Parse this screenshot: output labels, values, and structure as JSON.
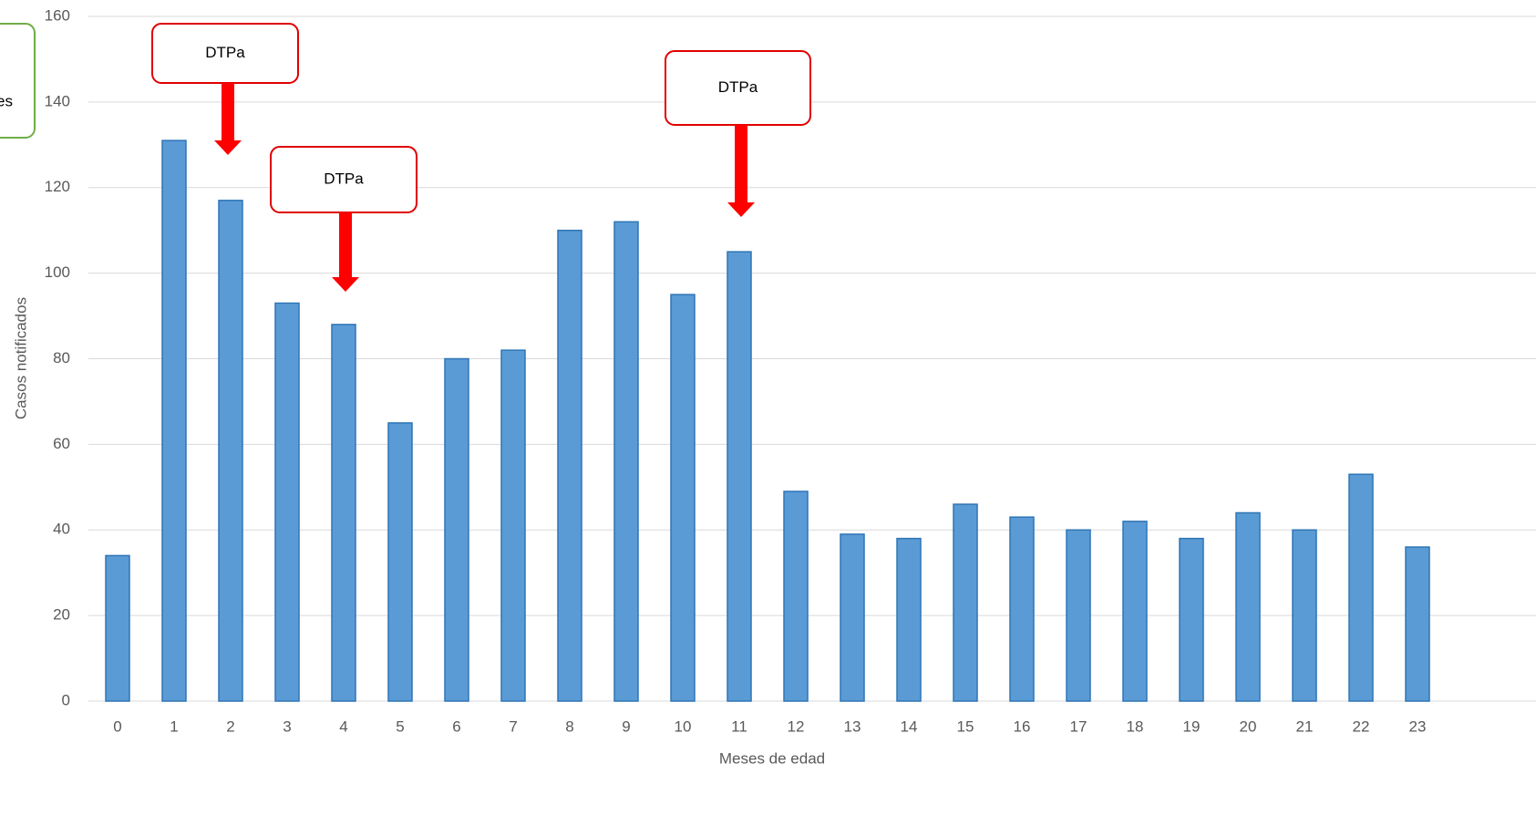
{
  "chart_data": {
    "type": "bar",
    "x_label": "Meses de edad",
    "y_label": "Casos notificados",
    "categories": [
      "0",
      "1",
      "2",
      "3",
      "4",
      "5",
      "6",
      "7",
      "8",
      "9",
      "10",
      "11",
      "12",
      "13",
      "14",
      "15",
      "16",
      "17",
      "18",
      "19",
      "20",
      "21",
      "22",
      "23"
    ],
    "values": [
      34,
      131,
      117,
      93,
      88,
      65,
      80,
      82,
      110,
      112,
      95,
      105,
      49,
      39,
      38,
      46,
      43,
      40,
      42,
      38,
      44,
      40,
      53,
      36
    ],
    "color": "#5b9bd5",
    "ylim": [
      0,
      160
    ],
    "yticks": [
      0,
      20,
      40,
      60,
      80,
      100,
      120,
      140,
      160
    ],
    "grid": true,
    "annotations": [
      "DTPa",
      "DTPa",
      "DTPa",
      "es"
    ]
  }
}
